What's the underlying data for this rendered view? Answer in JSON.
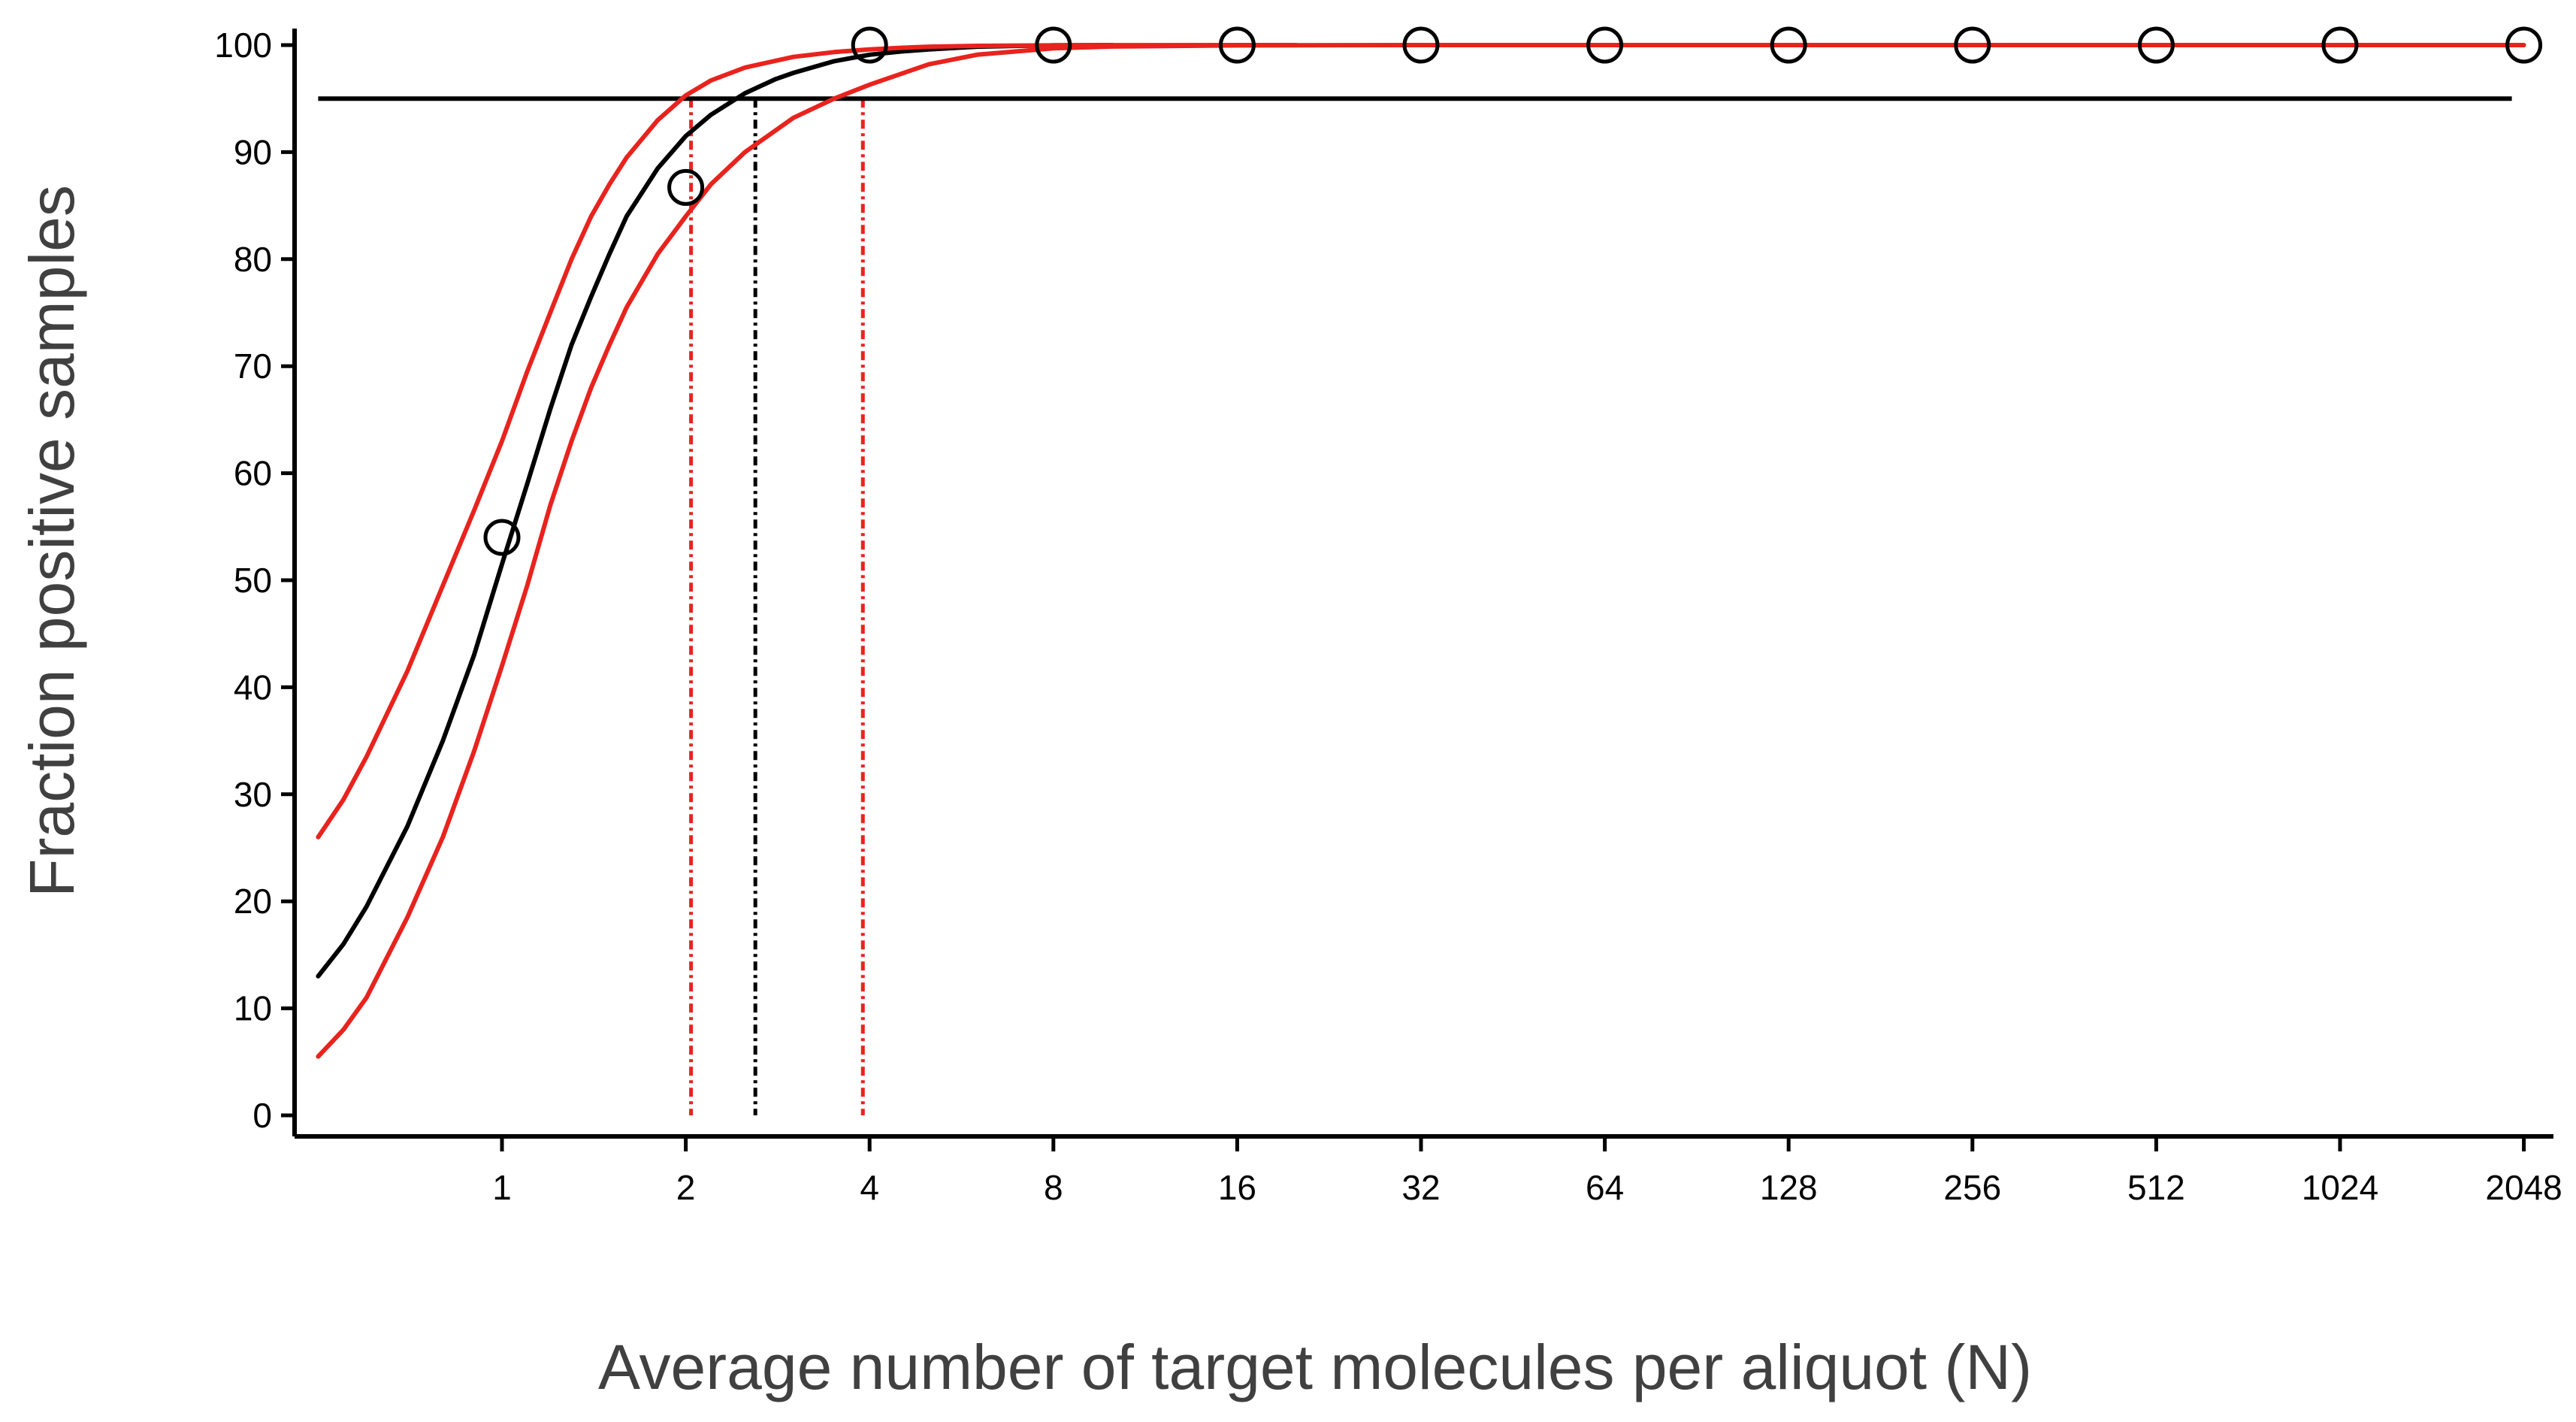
{
  "chart_data": {
    "type": "line",
    "title": "",
    "xlabel": "Average number of target molecules per aliquot (N)",
    "ylabel": "Fraction positive samples",
    "x_scale": "log2",
    "x_ticks": [
      1,
      2,
      4,
      8,
      16,
      32,
      64,
      128,
      256,
      512,
      1024,
      2048
    ],
    "x_tick_labels": [
      "1",
      "2",
      "4",
      "8",
      "16",
      "32",
      "64",
      "128",
      "256",
      "512",
      "1024",
      "2048"
    ],
    "y_ticks": [
      0,
      10,
      20,
      30,
      40,
      50,
      60,
      70,
      80,
      90,
      100
    ],
    "y_tick_labels": [
      "0",
      "10",
      "20",
      "30",
      "40",
      "50",
      "60",
      "70",
      "80",
      "90",
      "100"
    ],
    "xlim": [
      0.46,
      2300
    ],
    "ylim": [
      0,
      100
    ],
    "grid": false,
    "legend": "none",
    "series": [
      {
        "role": "fit",
        "color": "#000000",
        "x": [
          0.5,
          0.55,
          0.6,
          0.7,
          0.8,
          0.9,
          1.0,
          1.1,
          1.2,
          1.3,
          1.4,
          1.5,
          1.6,
          1.8,
          2.0,
          2.2,
          2.5,
          2.8,
          3.0,
          3.5,
          4.0,
          4.5,
          5.0,
          6.0,
          7.0,
          8.0,
          10.0
        ],
        "values": [
          13.0,
          16.0,
          19.5,
          27.0,
          35.0,
          43.0,
          51.5,
          59.0,
          66.0,
          72.0,
          76.5,
          80.5,
          84.0,
          88.5,
          91.5,
          93.5,
          95.5,
          96.8,
          97.4,
          98.5,
          99.1,
          99.4,
          99.6,
          99.85,
          99.93,
          99.97,
          100.0
        ]
      },
      {
        "role": "upper-ci",
        "color": "#e8231e",
        "x": [
          0.5,
          0.55,
          0.6,
          0.7,
          0.8,
          0.9,
          1.0,
          1.1,
          1.2,
          1.3,
          1.4,
          1.5,
          1.6,
          1.8,
          2.0,
          2.2,
          2.5,
          3.0,
          3.5,
          4.0,
          4.5,
          5.0,
          6.0,
          8.0,
          10.0,
          20.0
        ],
        "values": [
          26.0,
          29.5,
          33.5,
          41.5,
          49.5,
          56.5,
          63.0,
          69.5,
          75.0,
          80.0,
          84.0,
          87.0,
          89.5,
          93.0,
          95.3,
          96.7,
          97.9,
          98.9,
          99.35,
          99.6,
          99.75,
          99.85,
          99.93,
          99.98,
          99.99,
          100.0
        ]
      },
      {
        "role": "lower-ci",
        "color": "#e8231e",
        "x": [
          0.5,
          0.55,
          0.6,
          0.7,
          0.8,
          0.9,
          1.0,
          1.1,
          1.2,
          1.3,
          1.4,
          1.5,
          1.6,
          1.8,
          2.0,
          2.2,
          2.5,
          3.0,
          3.5,
          3.8,
          4.0,
          5.0,
          6.0,
          8.0,
          10.0,
          16.0,
          32.0,
          64.0,
          128.0,
          256.0,
          512.0,
          1024.0,
          2048.0
        ],
        "values": [
          5.5,
          8.0,
          11.0,
          18.5,
          26.0,
          34.0,
          42.0,
          49.5,
          57.0,
          63.0,
          68.0,
          72.0,
          75.5,
          80.5,
          84.0,
          87.0,
          90.0,
          93.2,
          95.0,
          95.8,
          96.3,
          98.2,
          99.1,
          99.7,
          99.87,
          99.97,
          100.0,
          100.0,
          100.0,
          100.0,
          100.0,
          100.0,
          100.0
        ]
      }
    ],
    "observed": {
      "x": [
        1,
        2,
        4,
        8,
        16,
        32,
        64,
        128,
        256,
        512,
        1024,
        2048
      ],
      "values": [
        54,
        86.7,
        100,
        100,
        100,
        100,
        100,
        100,
        100,
        100,
        100,
        100
      ]
    },
    "reference_line_y": 95,
    "reference_line_color": "#000000",
    "drop_lines": [
      {
        "x": 2.04,
        "color": "#e8231e",
        "style": "dotted"
      },
      {
        "x": 2.6,
        "color": "#000000",
        "style": "dotted"
      },
      {
        "x": 3.9,
        "color": "#e8231e",
        "style": "dotted"
      }
    ]
  }
}
